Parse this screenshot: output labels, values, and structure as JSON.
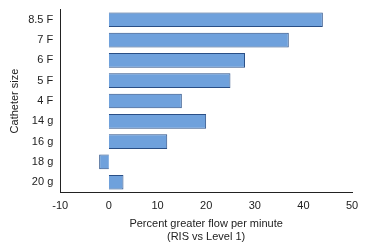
{
  "chart_data": {
    "type": "bar",
    "orientation": "horizontal",
    "ylabel": "Catheter size",
    "xlabel": "Percent greater flow per minute\n(RIS vs Level 1)",
    "categories": [
      "8.5 F",
      "7 F",
      "6 F",
      "5 F",
      "4 F",
      "14 g",
      "16 g",
      "18 g",
      "20 g"
    ],
    "values": [
      44,
      37,
      28,
      25,
      15,
      20,
      12,
      -2,
      3
    ],
    "color": "#6fa1dc",
    "xlim": [
      -10,
      50
    ],
    "xticks": [
      -10,
      0,
      10,
      20,
      30,
      40,
      50
    ],
    "grid": false
  }
}
